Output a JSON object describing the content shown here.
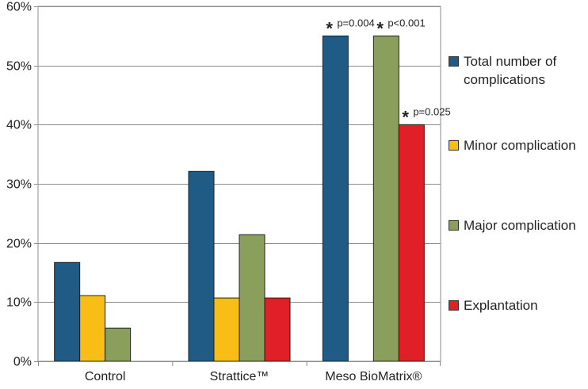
{
  "colors": {
    "total": "#1f5b85",
    "minor": "#f8be16",
    "major": "#8a9f5c",
    "explant": "#e01f27"
  },
  "chart_data": {
    "type": "bar",
    "categories": [
      "Control",
      "Strattice™",
      "Meso BioMatrix®"
    ],
    "series": [
      {
        "name": "Total number of complications",
        "color_key": "total",
        "values": [
          16.7,
          32.1,
          55
        ]
      },
      {
        "name": "Minor complication",
        "color_key": "minor",
        "values": [
          11.1,
          10.7,
          0
        ]
      },
      {
        "name": "Major complication",
        "color_key": "major",
        "values": [
          5.6,
          21.4,
          55
        ]
      },
      {
        "name": "Explantation",
        "color_key": "explant",
        "values": [
          0,
          10.7,
          40
        ]
      }
    ],
    "ylim": [
      0,
      60
    ],
    "yticks": [
      "0%",
      "10%",
      "20%",
      "30%",
      "40%",
      "50%",
      "60%"
    ],
    "ytick_values": [
      0,
      10,
      20,
      30,
      40,
      50,
      60
    ],
    "grid": true,
    "legend_position": "right",
    "annotations": [
      {
        "category": 2,
        "series": 0,
        "star": "*",
        "text": "p=0.004"
      },
      {
        "category": 2,
        "series": 2,
        "star": "*",
        "text": "p<0.001"
      },
      {
        "category": 2,
        "series": 3,
        "star": "*",
        "text": "p=0.025"
      }
    ]
  }
}
